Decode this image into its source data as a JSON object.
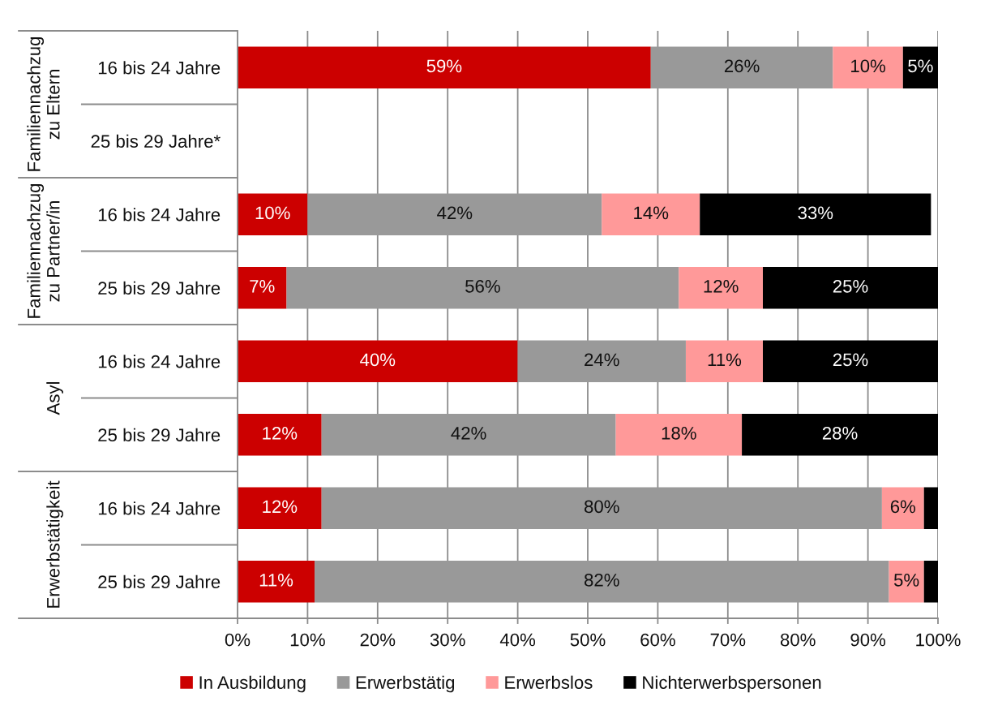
{
  "chart_data": {
    "type": "bar",
    "orientation": "horizontal",
    "stacked": true,
    "categories": [
      "16 bis 24 Jahre",
      "25 bis 29 Jahre*",
      "16 bis 24 Jahre",
      "25 bis 29 Jahre",
      "16 bis 24 Jahre",
      "25 bis 29 Jahre",
      "16 bis 24 Jahre",
      "25 bis 29 Jahre"
    ],
    "series": [
      {
        "name": "In Ausbildung",
        "color": "#cc0000",
        "values": [
          59,
          null,
          10,
          7,
          40,
          12,
          12,
          11
        ],
        "value_labels": [
          "59%",
          null,
          "10%",
          "7%",
          "40%",
          "12%",
          "12%",
          "11%"
        ]
      },
      {
        "name": "Erwerbstätig",
        "color": "#999999",
        "values": [
          26,
          null,
          42,
          56,
          24,
          42,
          80,
          82
        ],
        "value_labels": [
          "26%",
          null,
          "42%",
          "56%",
          "24%",
          "42%",
          "80%",
          "82%"
        ]
      },
      {
        "name": "Erwerbslos",
        "color": "#ff9999",
        "values": [
          10,
          null,
          14,
          12,
          11,
          18,
          6,
          5
        ],
        "value_labels": [
          "10%",
          null,
          "14%",
          "12%",
          "11%",
          "18%",
          "6%",
          "5%"
        ]
      },
      {
        "name": "Nichterwerbspersonen",
        "color": "#000000",
        "values": [
          5,
          null,
          33,
          25,
          25,
          28,
          2,
          2
        ],
        "value_labels": [
          "5%",
          null,
          "33%",
          "25%",
          "25%",
          "28%",
          null,
          null
        ]
      }
    ],
    "xlim": [
      0,
      100
    ],
    "xticks": [
      {
        "value": 0,
        "label": "0%"
      },
      {
        "value": 10,
        "label": "10%"
      },
      {
        "value": 20,
        "label": "20%"
      },
      {
        "value": 30,
        "label": "30%"
      },
      {
        "value": 40,
        "label": "40%"
      },
      {
        "value": 50,
        "label": "50%"
      },
      {
        "value": 60,
        "label": "60%"
      },
      {
        "value": 70,
        "label": "70%"
      },
      {
        "value": 80,
        "label": "80%"
      },
      {
        "value": 90,
        "label": "90%"
      },
      {
        "value": 100,
        "label": "100%"
      }
    ],
    "grid": "x",
    "legend": "bottom",
    "annotations": [
      "Familiennachzug\nzu Eltern",
      "Familiennachzug\nzu Partner/in",
      "Asyl",
      "Erwerbstätigkeit"
    ]
  }
}
